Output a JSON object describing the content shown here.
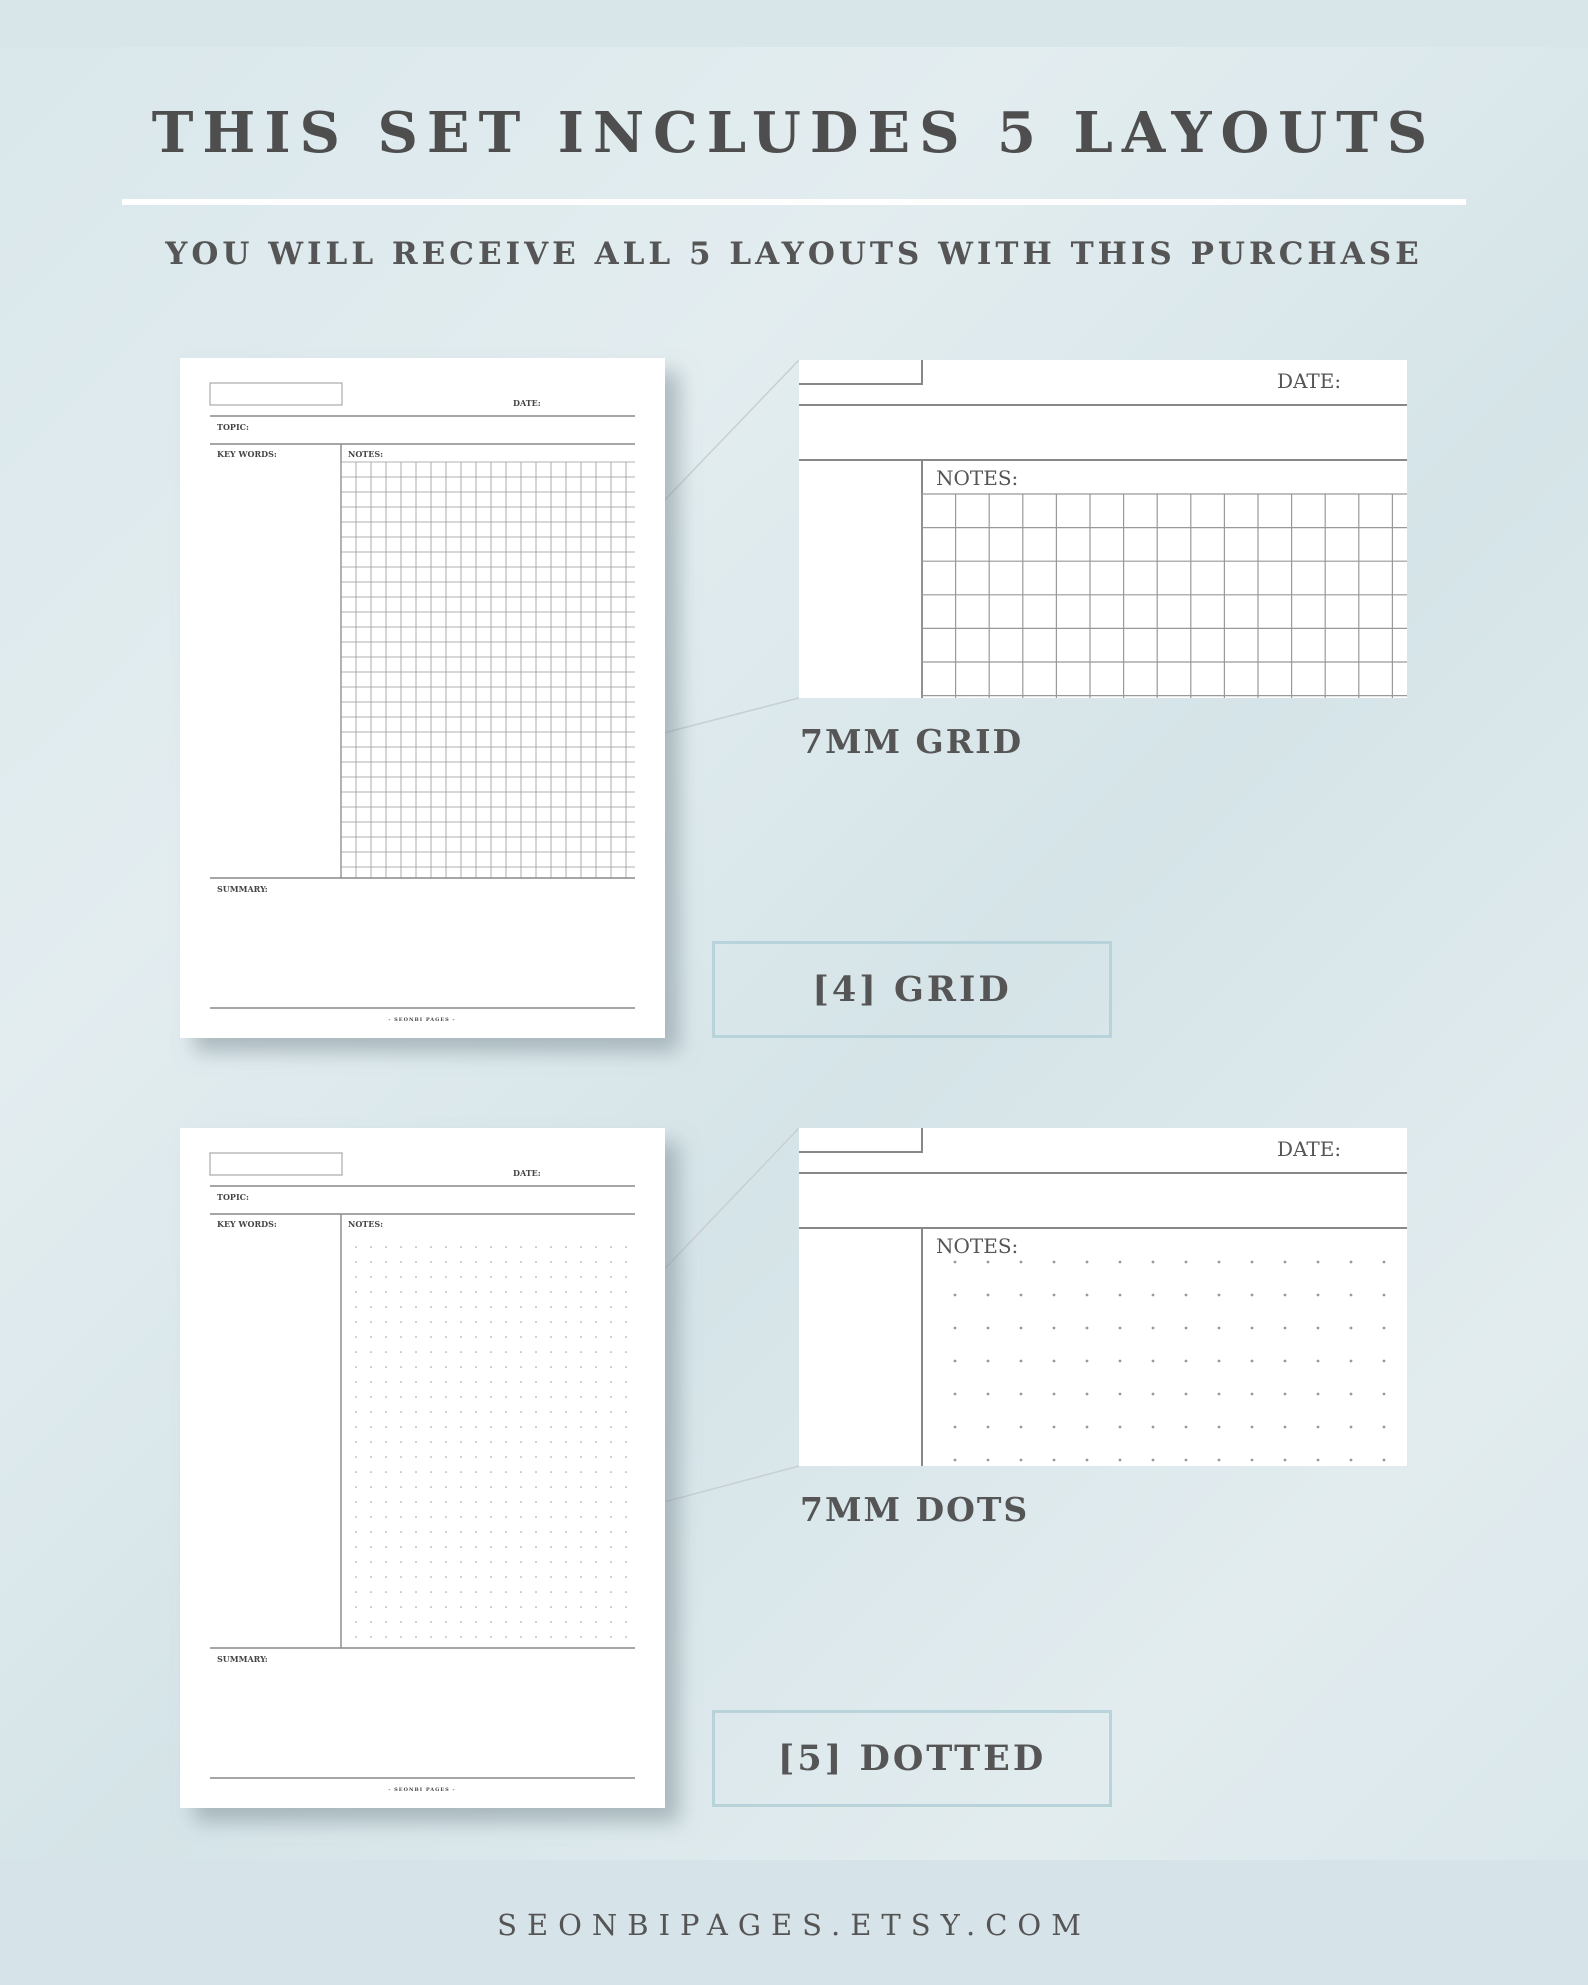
{
  "header": {
    "title": "THIS SET INCLUDES 5 LAYOUTS",
    "subtitle": "YOU WILL RECEIVE ALL 5 LAYOUTS WITH THIS PURCHASE"
  },
  "page_labels": {
    "date": "DATE:",
    "topic": "TOPIC:",
    "key_words": "KEY WORDS:",
    "notes": "NOTES:",
    "summary": "SUMMARY:",
    "brand": "- SEONBI PAGES -"
  },
  "layouts": [
    {
      "pattern": "grid",
      "caption": "7MM GRID",
      "label": "[4] GRID"
    },
    {
      "pattern": "dots",
      "caption": "7MM DOTS",
      "label": "[5] DOTTED"
    }
  ],
  "colors": {
    "background": "#dce8ec",
    "text": "#555555",
    "box_border": "#b9d3da"
  },
  "footer": {
    "site": "SEONBIPAGES.ETSY.COM"
  }
}
